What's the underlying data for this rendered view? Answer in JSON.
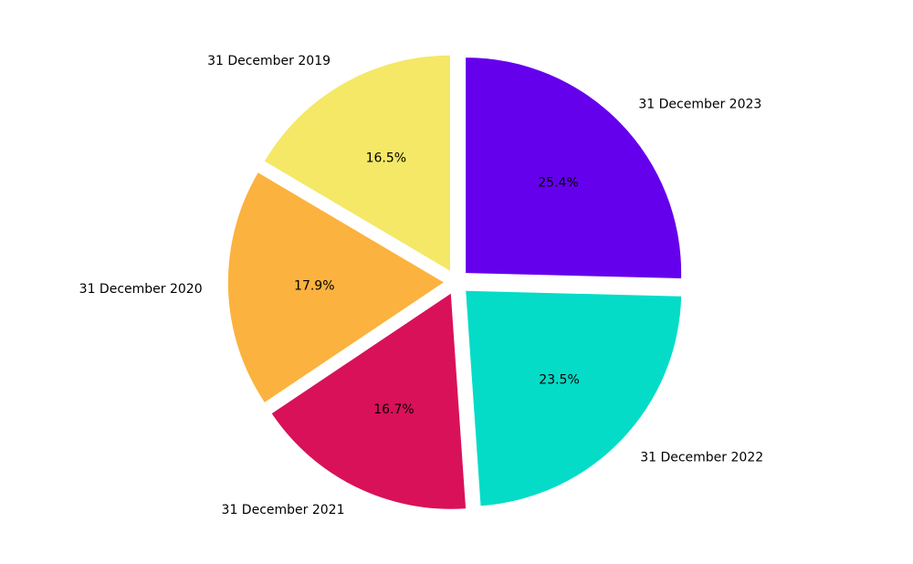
{
  "chart_data": {
    "type": "pie",
    "title": "",
    "categories": [
      "31 December 2019",
      "31 December 2020",
      "31 December 2021",
      "31 December 2022",
      "31 December 2023"
    ],
    "values": [
      16.5,
      17.9,
      16.7,
      23.5,
      25.4
    ],
    "value_labels": [
      "16.5%",
      "17.9%",
      "16.7%",
      "23.5%",
      "25.4%"
    ],
    "colors": [
      "#f4e866",
      "#fcb23e",
      "#d91158",
      "#04dcc8",
      "#6500ec"
    ],
    "start": "top",
    "direction": "counterclockwise",
    "exploded": true,
    "legend": "none"
  }
}
